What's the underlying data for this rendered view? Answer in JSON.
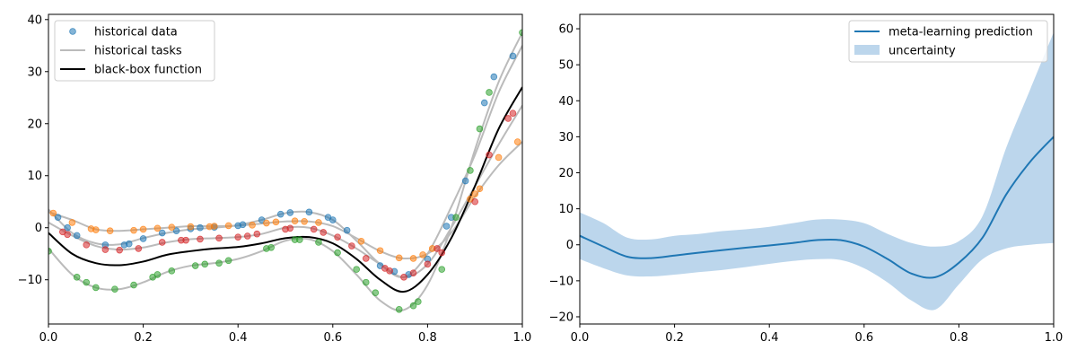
{
  "chart_data": [
    {
      "type": "scatter",
      "xlim": [
        0,
        1
      ],
      "ylim": [
        -18.5,
        41
      ],
      "xticks": [
        0.0,
        0.2,
        0.4,
        0.6,
        0.8,
        1.0
      ],
      "xtick_labels": [
        "0.0",
        "0.2",
        "0.4",
        "0.6",
        "0.8",
        "1.0"
      ],
      "yticks": [
        -10,
        0,
        10,
        20,
        30,
        40
      ],
      "ytick_labels": [
        "−10",
        "0",
        "10",
        "20",
        "30",
        "40"
      ],
      "legend": {
        "placement": "upper-left",
        "entries": [
          "historical data",
          "historical tasks",
          "black-box function"
        ]
      },
      "colors": {
        "task_line": "#bbbbbb",
        "black_box": "#000000",
        "task_points": [
          "#1f77b4",
          "#ff7f0e",
          "#2ca02c",
          "#d62728"
        ]
      },
      "tasks": [
        {
          "x": [
            0.0,
            0.05,
            0.1,
            0.15,
            0.2,
            0.25,
            0.3,
            0.35,
            0.4,
            0.45,
            0.5,
            0.55,
            0.6,
            0.65,
            0.7,
            0.75,
            0.8,
            0.85,
            0.9,
            0.95,
            1.0
          ],
          "y": [
            3.5,
            -1.0,
            -3.0,
            -3.2,
            -2.0,
            -1.0,
            -0.3,
            0.0,
            0.5,
            1.5,
            2.8,
            3.0,
            1.5,
            -2.5,
            -7.0,
            -9.5,
            -5.0,
            4.0,
            14.0,
            26.0,
            35.0
          ]
        },
        {
          "x": [
            0.0,
            0.05,
            0.1,
            0.15,
            0.2,
            0.25,
            0.3,
            0.35,
            0.4,
            0.45,
            0.5,
            0.55,
            0.6,
            0.65,
            0.7,
            0.75,
            0.8,
            0.85,
            0.9,
            0.95,
            1.0
          ],
          "y": [
            3.0,
            1.5,
            -0.3,
            -0.6,
            -0.3,
            0.0,
            0.3,
            0.3,
            0.4,
            0.8,
            1.2,
            1.2,
            0.3,
            -2.0,
            -4.5,
            -5.9,
            -5.0,
            -1.0,
            6.0,
            12.0,
            16.5
          ]
        },
        {
          "x": [
            0.0,
            0.05,
            0.1,
            0.15,
            0.2,
            0.25,
            0.3,
            0.35,
            0.4,
            0.45,
            0.5,
            0.55,
            0.6,
            0.65,
            0.7,
            0.75,
            0.8,
            0.85,
            0.9,
            0.95,
            1.0
          ],
          "y": [
            -4.0,
            -9.0,
            -11.5,
            -11.8,
            -10.5,
            -8.5,
            -7.3,
            -6.8,
            -6.0,
            -4.5,
            -2.5,
            -2.2,
            -4.5,
            -9.0,
            -14.0,
            -15.8,
            -11.0,
            0.0,
            15.0,
            28.0,
            37.5
          ]
        },
        {
          "x": [
            0.0,
            0.05,
            0.1,
            0.15,
            0.2,
            0.25,
            0.3,
            0.35,
            0.4,
            0.45,
            0.5,
            0.55,
            0.6,
            0.65,
            0.7,
            0.75,
            0.8,
            0.85,
            0.9,
            0.95,
            1.0
          ],
          "y": [
            1.0,
            -1.5,
            -3.5,
            -4.2,
            -3.8,
            -2.8,
            -2.2,
            -2.0,
            -1.8,
            -1.2,
            0.0,
            0.0,
            -1.5,
            -4.0,
            -7.0,
            -9.5,
            -7.0,
            0.0,
            8.0,
            16.0,
            23.5
          ]
        }
      ],
      "black_box": {
        "x": [
          0.0,
          0.05,
          0.1,
          0.15,
          0.2,
          0.25,
          0.3,
          0.35,
          0.4,
          0.45,
          0.5,
          0.55,
          0.6,
          0.65,
          0.7,
          0.75,
          0.8,
          0.85,
          0.9,
          0.95,
          1.0
        ],
        "y": [
          -1.0,
          -5.0,
          -6.8,
          -7.2,
          -6.5,
          -5.2,
          -4.5,
          -4.0,
          -3.7,
          -3.0,
          -2.0,
          -1.8,
          -3.0,
          -6.0,
          -10.0,
          -12.3,
          -9.0,
          -2.0,
          8.0,
          19.0,
          27.0
        ]
      },
      "points": [
        {
          "task": 0,
          "x": [
            0.02,
            0.04,
            0.06,
            0.12,
            0.16,
            0.17,
            0.2,
            0.24,
            0.27,
            0.3,
            0.32,
            0.35,
            0.4,
            0.41,
            0.45,
            0.49,
            0.51,
            0.55,
            0.59,
            0.6,
            0.63,
            0.7,
            0.73,
            0.76,
            0.8,
            0.84,
            0.85,
            0.88,
            0.92,
            0.94,
            0.98
          ],
          "y": [
            2.0,
            0.0,
            -1.5,
            -3.3,
            -3.3,
            -3.1,
            -2.1,
            -1.0,
            -0.6,
            -0.2,
            0.0,
            0.1,
            0.4,
            0.6,
            1.5,
            2.6,
            2.9,
            3.0,
            2.0,
            1.5,
            -0.5,
            -7.3,
            -8.4,
            -9.0,
            -6.0,
            0.3,
            2.0,
            9.0,
            24.0,
            29.0,
            33.0
          ]
        },
        {
          "task": 1,
          "x": [
            0.01,
            0.05,
            0.09,
            0.1,
            0.13,
            0.18,
            0.2,
            0.23,
            0.26,
            0.3,
            0.34,
            0.35,
            0.38,
            0.43,
            0.46,
            0.48,
            0.52,
            0.54,
            0.57,
            0.66,
            0.7,
            0.74,
            0.77,
            0.79,
            0.81,
            0.89,
            0.9,
            0.91,
            0.95,
            0.99
          ],
          "y": [
            2.8,
            1.0,
            -0.2,
            -0.4,
            -0.6,
            -0.5,
            -0.3,
            -0.1,
            0.1,
            0.2,
            0.2,
            0.3,
            0.4,
            0.5,
            0.9,
            1.1,
            1.3,
            1.2,
            1.0,
            -2.6,
            -4.4,
            -5.8,
            -5.9,
            -5.2,
            -4.0,
            5.5,
            6.5,
            7.5,
            13.5,
            16.5
          ]
        },
        {
          "task": 2,
          "x": [
            0.0,
            0.06,
            0.08,
            0.1,
            0.14,
            0.18,
            0.22,
            0.23,
            0.26,
            0.31,
            0.33,
            0.36,
            0.38,
            0.46,
            0.47,
            0.52,
            0.53,
            0.57,
            0.61,
            0.65,
            0.67,
            0.69,
            0.74,
            0.77,
            0.78,
            0.83,
            0.86,
            0.89,
            0.91,
            0.93,
            1.0
          ],
          "y": [
            -4.5,
            -9.5,
            -10.5,
            -11.5,
            -11.8,
            -11.0,
            -9.5,
            -9.0,
            -8.3,
            -7.3,
            -7.0,
            -6.8,
            -6.3,
            -4.0,
            -3.8,
            -2.3,
            -2.3,
            -2.8,
            -4.8,
            -8.0,
            -10.5,
            -12.5,
            -15.7,
            -15.0,
            -14.2,
            -8.0,
            2.0,
            11.0,
            19.0,
            26.0,
            37.5
          ]
        },
        {
          "task": 3,
          "x": [
            0.03,
            0.04,
            0.08,
            0.12,
            0.15,
            0.19,
            0.24,
            0.28,
            0.29,
            0.32,
            0.36,
            0.4,
            0.42,
            0.44,
            0.5,
            0.51,
            0.56,
            0.58,
            0.61,
            0.64,
            0.67,
            0.71,
            0.72,
            0.75,
            0.77,
            0.8,
            0.82,
            0.83,
            0.9,
            0.93,
            0.97,
            0.98
          ],
          "y": [
            -0.8,
            -1.3,
            -3.3,
            -4.2,
            -4.3,
            -4.0,
            -2.8,
            -2.4,
            -2.4,
            -2.2,
            -2.0,
            -1.8,
            -1.6,
            -1.2,
            -0.3,
            -0.1,
            -0.3,
            -0.9,
            -1.8,
            -3.5,
            -5.9,
            -7.8,
            -8.3,
            -9.5,
            -8.7,
            -7.0,
            -4.0,
            -4.8,
            5.0,
            14.0,
            21.0,
            22.0
          ]
        }
      ]
    },
    {
      "type": "area",
      "xlim": [
        0,
        1
      ],
      "ylim": [
        -22,
        64
      ],
      "xticks": [
        0.0,
        0.2,
        0.4,
        0.6,
        0.8,
        1.0
      ],
      "xtick_labels": [
        "0.0",
        "0.2",
        "0.4",
        "0.6",
        "0.8",
        "1.0"
      ],
      "yticks": [
        -20,
        -10,
        0,
        10,
        20,
        30,
        40,
        50,
        60
      ],
      "ytick_labels": [
        "−20",
        "−10",
        "0",
        "10",
        "20",
        "30",
        "40",
        "50",
        "60"
      ],
      "legend": {
        "placement": "upper-right",
        "entries": [
          "meta-learning prediction",
          "uncertainty"
        ]
      },
      "colors": {
        "prediction": "#1f77b4",
        "uncertainty": "#a6c8e5"
      },
      "x": [
        0.0,
        0.05,
        0.1,
        0.15,
        0.2,
        0.25,
        0.3,
        0.35,
        0.4,
        0.45,
        0.5,
        0.55,
        0.6,
        0.65,
        0.7,
        0.75,
        0.8,
        0.85,
        0.9,
        0.95,
        1.0
      ],
      "mean": [
        2.5,
        -0.5,
        -3.3,
        -3.7,
        -3.0,
        -2.2,
        -1.5,
        -0.8,
        -0.2,
        0.5,
        1.3,
        1.3,
        -0.5,
        -4.0,
        -8.0,
        -9.0,
        -5.0,
        2.0,
        14.0,
        23.0,
        30.0
      ],
      "upper": [
        9.0,
        6.0,
        2.0,
        1.5,
        2.5,
        3.0,
        3.8,
        4.3,
        5.0,
        6.0,
        7.0,
        7.0,
        6.0,
        3.0,
        0.5,
        -0.5,
        1.0,
        8.0,
        27.0,
        43.0,
        59.0
      ],
      "lower": [
        -4.0,
        -6.5,
        -8.5,
        -8.8,
        -8.3,
        -7.6,
        -7.0,
        -6.2,
        -5.3,
        -4.5,
        -4.0,
        -4.2,
        -6.5,
        -10.5,
        -15.5,
        -18.0,
        -11.0,
        -4.0,
        -1.0,
        0.0,
        0.5
      ]
    }
  ]
}
